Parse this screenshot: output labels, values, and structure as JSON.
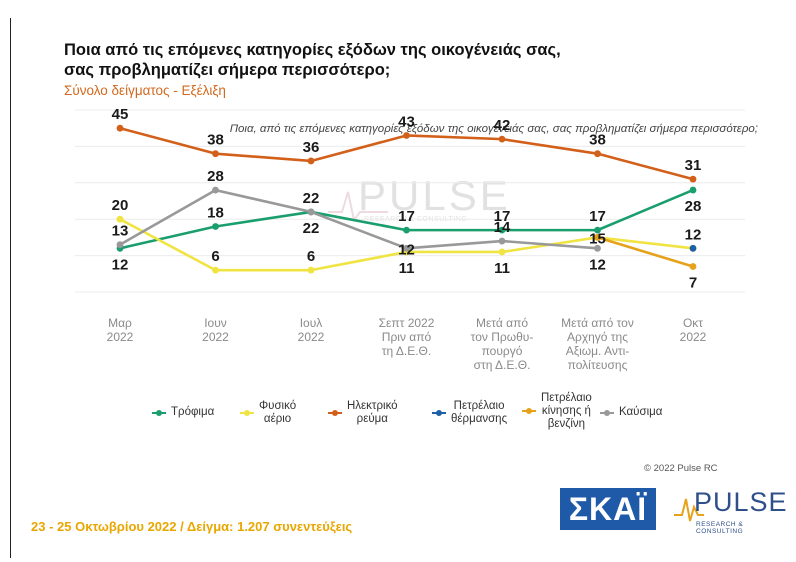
{
  "header": {
    "title_line1": "Ποια από τις επόμενες κατηγορίες εξόδων της οικογένειάς σας,",
    "title_line2": "σας προβληματίζει σήμερα περισσότερο;",
    "subtitle": "Σύνολο δείγματος - Εξέλιξη",
    "note": "Ποια, από τις επόμενες κατηγορίες εξόδων της οικογένειάς σας, σας προβληματίζει σήμερα περισσότερο;"
  },
  "chart_data": {
    "type": "line",
    "categories": [
      [
        "Μαρ",
        "2022"
      ],
      [
        "Ιουν",
        "2022"
      ],
      [
        "Ιουλ",
        "2022"
      ],
      [
        "Σεπτ 2022",
        "Πριν από",
        "τη Δ.Ε.Θ."
      ],
      [
        "Μετά από",
        "τον Πρωθυ-",
        "πουργό",
        "στη Δ.Ε.Θ."
      ],
      [
        "Μετά από τον",
        "Αρχηγό της",
        "Αξιωμ. Αντι-",
        "πολίτευσης"
      ],
      [
        "Οκτ",
        "2022"
      ]
    ],
    "ylim": [
      0,
      50
    ],
    "grid": true,
    "legend_position": "bottom",
    "series": [
      {
        "name": "Τρόφιμα",
        "color": "#1a9e6e",
        "values": [
          12,
          18,
          22,
          17,
          17,
          17,
          28
        ]
      },
      {
        "name": "Φυσικό αέριο",
        "color": "#f0e442",
        "values": [
          20,
          6,
          6,
          11,
          11,
          15,
          12
        ]
      },
      {
        "name": "Ηλεκτρικό ρεύμα",
        "color": "#d2601a",
        "values": [
          45,
          38,
          36,
          43,
          42,
          38,
          31
        ]
      },
      {
        "name": "Πετρέλαιο θέρμανσης",
        "color": "#1f5fa6",
        "values": [
          null,
          null,
          null,
          null,
          null,
          null,
          12
        ]
      },
      {
        "name": "Πετρέλαιο κίνησης ή βενζίνη",
        "color": "#e6a21a",
        "values": [
          null,
          null,
          null,
          null,
          null,
          15,
          7
        ]
      },
      {
        "name": "Καύσιμα",
        "color": "#999999",
        "values": [
          13,
          28,
          22,
          12,
          14,
          12,
          null
        ]
      }
    ]
  },
  "legend": [
    {
      "label_lines": [
        "Τρόφιμα"
      ],
      "color": "#1a9e6e"
    },
    {
      "label_lines": [
        "Φυσικό",
        "αέριο"
      ],
      "color": "#f0e442"
    },
    {
      "label_lines": [
        "Ηλεκτρικό",
        "ρεύμα"
      ],
      "color": "#d2601a"
    },
    {
      "label_lines": [
        "Πετρέλαιο",
        "θέρμανσης"
      ],
      "color": "#1f5fa6"
    },
    {
      "label_lines": [
        "Πετρέλαιο",
        "κίνησης ή",
        "βενζίνη"
      ],
      "color": "#e6a21a"
    },
    {
      "label_lines": [
        "Καύσιμα"
      ],
      "color": "#999999"
    }
  ],
  "data_labels": [
    {
      "text": "45",
      "cat": 0,
      "value": 45,
      "pos": "above"
    },
    {
      "text": "20",
      "cat": 0,
      "value": 20,
      "pos": "above"
    },
    {
      "text": "13",
      "cat": 0,
      "value": 13,
      "pos": "above"
    },
    {
      "text": "12",
      "cat": 0,
      "value": 12,
      "pos": "below"
    },
    {
      "text": "38",
      "cat": 1,
      "value": 38,
      "pos": "above"
    },
    {
      "text": "28",
      "cat": 1,
      "value": 28,
      "pos": "above"
    },
    {
      "text": "18",
      "cat": 1,
      "value": 18,
      "pos": "above"
    },
    {
      "text": "6",
      "cat": 1,
      "value": 6,
      "pos": "above"
    },
    {
      "text": "36",
      "cat": 2,
      "value": 36,
      "pos": "above"
    },
    {
      "text": "22",
      "cat": 2,
      "value": 22,
      "pos": "above"
    },
    {
      "text": "22",
      "cat": 2,
      "value": 22,
      "pos": "below"
    },
    {
      "text": "6",
      "cat": 2,
      "value": 6,
      "pos": "above"
    },
    {
      "text": "43",
      "cat": 3,
      "value": 43,
      "pos": "above"
    },
    {
      "text": "17",
      "cat": 3,
      "value": 17,
      "pos": "above"
    },
    {
      "text": "12",
      "cat": 3,
      "value": 12,
      "pos": "onpoint"
    },
    {
      "text": "11",
      "cat": 3,
      "value": 11,
      "pos": "below"
    },
    {
      "text": "42",
      "cat": 4,
      "value": 42,
      "pos": "above"
    },
    {
      "text": "17",
      "cat": 4,
      "value": 17,
      "pos": "above"
    },
    {
      "text": "14",
      "cat": 4,
      "value": 14,
      "pos": "above"
    },
    {
      "text": "11",
      "cat": 4,
      "value": 11,
      "pos": "below"
    },
    {
      "text": "38",
      "cat": 5,
      "value": 38,
      "pos": "above"
    },
    {
      "text": "17",
      "cat": 5,
      "value": 17,
      "pos": "above"
    },
    {
      "text": "15",
      "cat": 5,
      "value": 15,
      "pos": "onpoint"
    },
    {
      "text": "12",
      "cat": 5,
      "value": 12,
      "pos": "below"
    },
    {
      "text": "31",
      "cat": 6,
      "value": 31,
      "pos": "above"
    },
    {
      "text": "28",
      "cat": 6,
      "value": 28,
      "pos": "below"
    },
    {
      "text": "12",
      "cat": 6,
      "value": 12,
      "pos": "above"
    },
    {
      "text": "7",
      "cat": 6,
      "value": 7,
      "pos": "below"
    }
  ],
  "watermark": {
    "word": "PULSE",
    "sub": "RESEARCH & CONSULTING"
  },
  "copyright": "© 2022 Pulse RC",
  "footer": "23 - 25 Οκτωβρίου 2022 / Δείγμα: 1.207 συνεντεύξεις",
  "logos": {
    "skai": "ΣΚΑΪ",
    "pulse_word": "PULSE",
    "pulse_sub": "RESEARCH & CONSULTING"
  }
}
